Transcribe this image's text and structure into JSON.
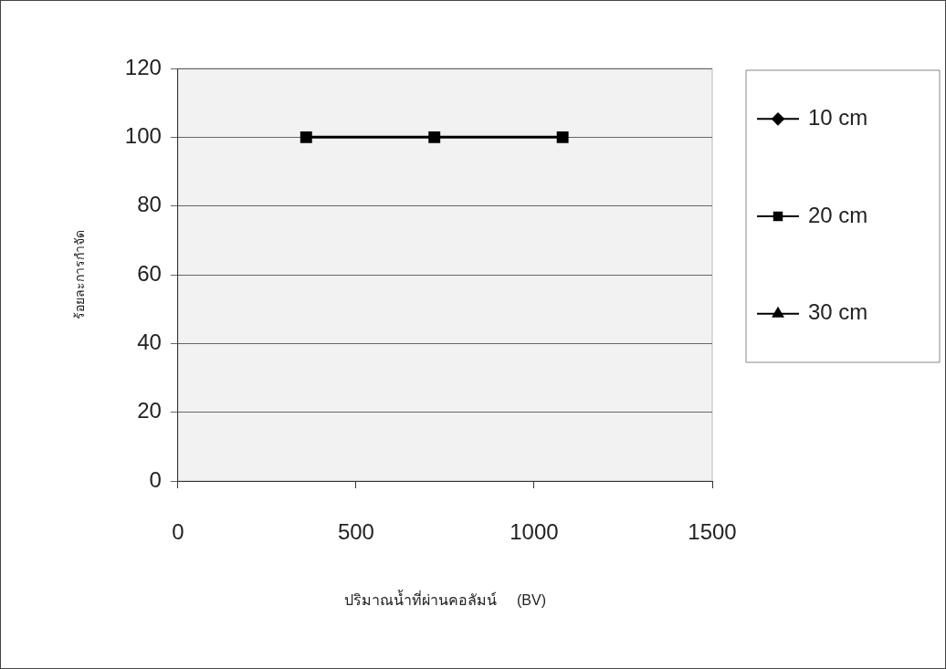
{
  "chart_data": {
    "type": "line",
    "xlabel": "ปริมาณน้ำที่ผ่านคอลัมน์     (BV)",
    "ylabel": "ร้อยละการกำจัด",
    "x": [
      360,
      720,
      1080
    ],
    "series": [
      {
        "name": "10 cm",
        "color": "#000000",
        "marker": "diamond",
        "values": [
          null,
          null,
          null
        ]
      },
      {
        "name": "20 cm",
        "color": "#000000",
        "marker": "square",
        "values": [
          100,
          100,
          100
        ]
      },
      {
        "name": "30 cm",
        "color": "#000000",
        "marker": "triangle",
        "values": [
          null,
          null,
          null
        ]
      }
    ],
    "xlim": [
      0,
      1500
    ],
    "xticks": [
      0,
      500,
      1000,
      1500
    ],
    "ylim": [
      0,
      120
    ],
    "yticks": [
      0,
      20,
      40,
      60,
      80,
      100,
      120
    ],
    "grid": "y",
    "legend": "right",
    "line_style": "solid"
  }
}
